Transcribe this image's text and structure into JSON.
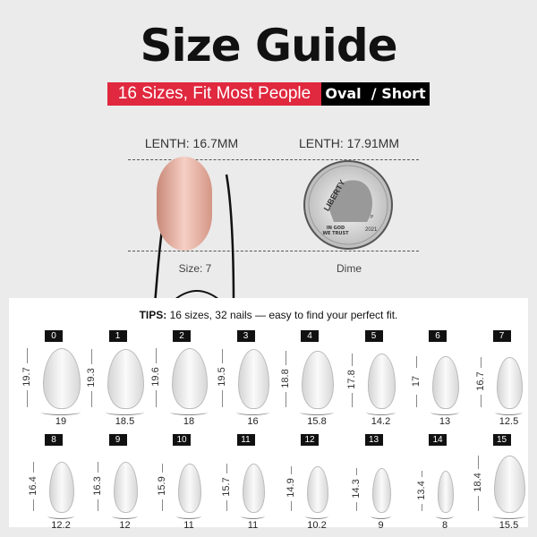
{
  "title": "Size Guide",
  "banner": {
    "subtitle": "16 Sizes, Fit Most People",
    "shape": "Oval  / Short"
  },
  "comparison": {
    "nail_length": "LENTH: 16.7MM",
    "coin_length": "LENTH: 17.91MM",
    "nail_caption": "Size: 7",
    "coin_caption": "Dime",
    "coin_text": [
      "LIBERTY",
      "IN GOD WE TRUST",
      "2021",
      "P"
    ],
    "nail_color": "#e9b3a4"
  },
  "tips": {
    "label": "TIPS:",
    "text": " 16 sizes, 32 nails — easy to find your perfect fit."
  },
  "nails": [
    {
      "size": "0",
      "length": "19.7",
      "width": "19"
    },
    {
      "size": "1",
      "length": "19.3",
      "width": "18.5"
    },
    {
      "size": "2",
      "length": "19.6",
      "width": "18"
    },
    {
      "size": "3",
      "length": "19.5",
      "width": "16"
    },
    {
      "size": "4",
      "length": "18.8",
      "width": "15.8"
    },
    {
      "size": "5",
      "length": "17.8",
      "width": "14.2"
    },
    {
      "size": "6",
      "length": "17",
      "width": "13"
    },
    {
      "size": "7",
      "length": "16.7",
      "width": "12.5"
    },
    {
      "size": "8",
      "length": "16.4",
      "width": "12.2"
    },
    {
      "size": "9",
      "length": "16.3",
      "width": "12"
    },
    {
      "size": "10",
      "length": "15.9",
      "width": "11"
    },
    {
      "size": "11",
      "length": "15.7",
      "width": "11"
    },
    {
      "size": "12",
      "length": "14.9",
      "width": "10.2"
    },
    {
      "size": "13",
      "length": "14.3",
      "width": "9"
    },
    {
      "size": "14",
      "length": "13.4",
      "width": "8"
    },
    {
      "size": "15",
      "length": "18.4",
      "width": "15.5"
    }
  ]
}
